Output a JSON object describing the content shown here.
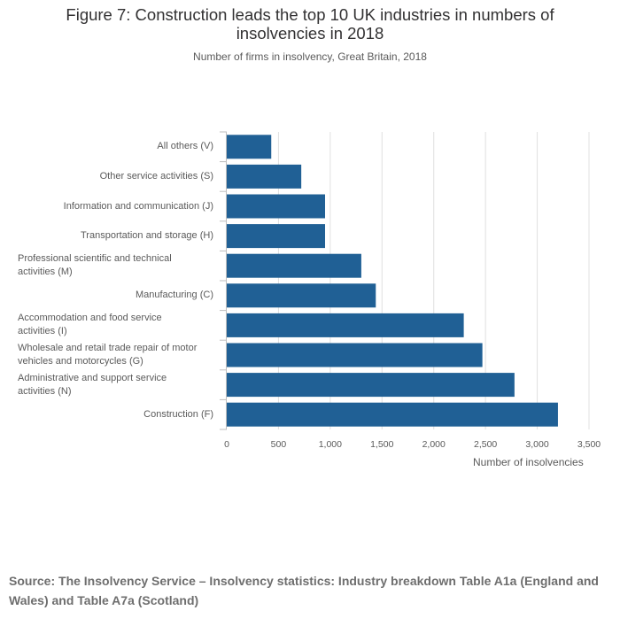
{
  "title": "Figure 7: Construction leads the top 10 UK industries in numbers of insolvencies in 2018",
  "subtitle": "Number of firms in insolvency, Great Britain, 2018",
  "source": "Source: The Insolvency Service – Insolvency statistics: Industry breakdown  Table A1a (England and Wales) and Table A7a (Scotland)",
  "colors": {
    "bar": "#206095",
    "grid": "#e0e0e0",
    "axis": "#bebebe"
  },
  "chart_data": {
    "type": "bar",
    "orientation": "horizontal",
    "title": "Figure 7: Construction leads the top 10 UK industries in numbers of insolvencies in 2018",
    "subtitle": "Number of firms in insolvency, Great Britain, 2018",
    "xlabel": "Number of insolvencies",
    "ylabel": "",
    "xlim": [
      0,
      3500
    ],
    "xticks": [
      0,
      500,
      1000,
      1500,
      2000,
      2500,
      3000,
      3500
    ],
    "xtick_labels": [
      "0",
      "500",
      "1,000",
      "1,500",
      "2,000",
      "2,500",
      "3,000",
      "3,500"
    ],
    "grid": "vertical",
    "legend": "none",
    "categories": [
      "All others (V)",
      "Other service activities (S)",
      "Information and communication (J)",
      "Transportation and storage (H)",
      "Professional scientific and technical activities (M)",
      "Manufacturing (C)",
      "Accommodation and food service activities (I)",
      "Wholesale and retail trade repair of motor vehicles and motorcycles (G)",
      "Administrative and support service activities (N)",
      "Construction (F)"
    ],
    "category_lines": [
      [
        "All others (V)"
      ],
      [
        "Other service activities (S)"
      ],
      [
        "Information and communication (J)"
      ],
      [
        "Transportation and storage (H)"
      ],
      [
        "Professional scientific and technical",
        "activities (M)"
      ],
      [
        "Manufacturing (C)"
      ],
      [
        "Accommodation and food service",
        "activities (I)"
      ],
      [
        "Wholesale and retail trade repair of motor",
        "vehicles and motorcycles (G)"
      ],
      [
        "Administrative and support service",
        "activities (N)"
      ],
      [
        "Construction (F)"
      ]
    ],
    "values": [
      430,
      720,
      950,
      950,
      1300,
      1440,
      2290,
      2470,
      2780,
      3200
    ]
  }
}
